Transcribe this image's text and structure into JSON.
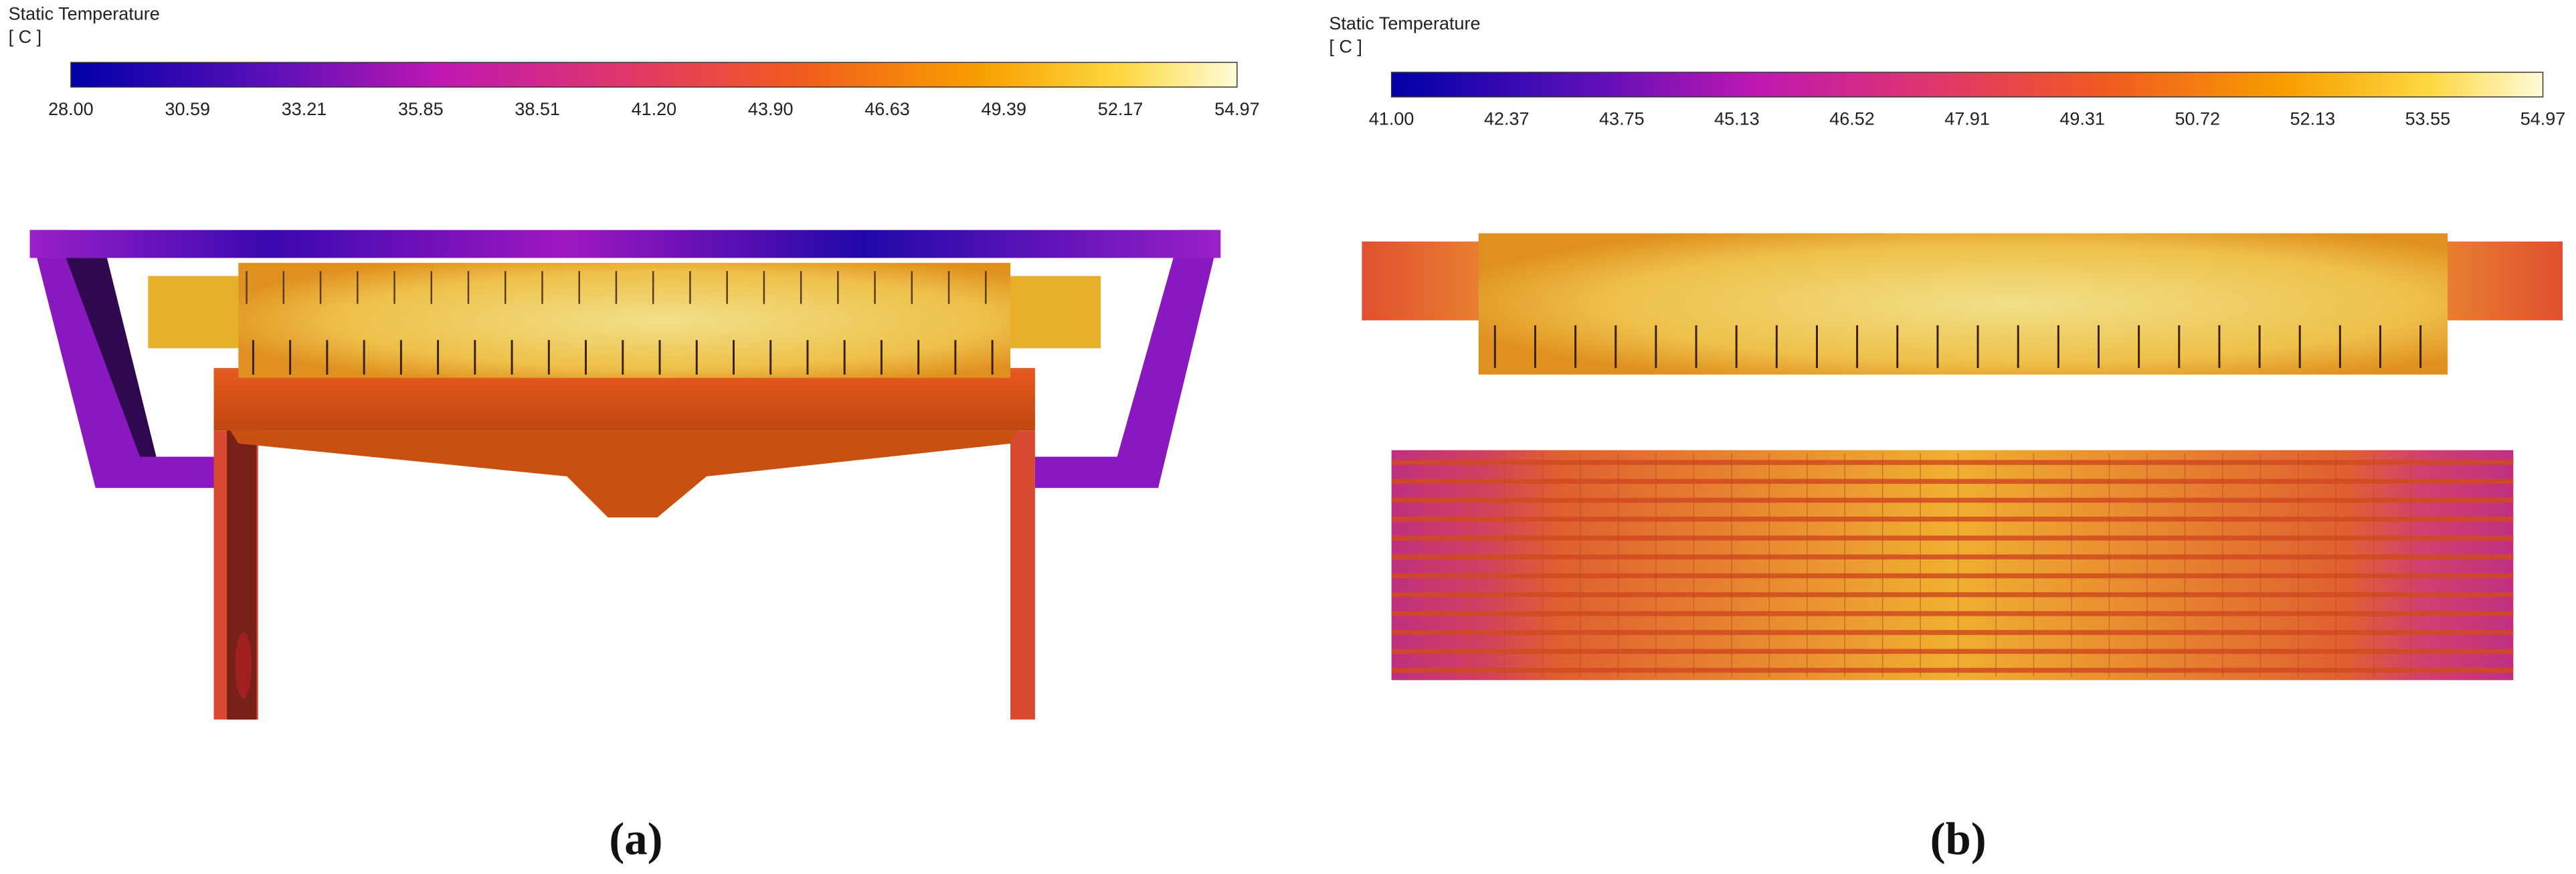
{
  "panels": [
    {
      "colorbar": {
        "title": "Static Temperature",
        "unit": "[ C ]",
        "ticks": [
          "28.00",
          "30.59",
          "33.21",
          "35.85",
          "38.51",
          "41.20",
          "43.90",
          "46.63",
          "49.39",
          "52.17",
          "54.97"
        ]
      },
      "caption": "(a)"
    },
    {
      "colorbar": {
        "title": "Static Temperature",
        "unit": "[ C ]",
        "ticks": [
          "41.00",
          "42.37",
          "43.75",
          "45.13",
          "46.52",
          "47.91",
          "49.31",
          "50.72",
          "52.13",
          "53.55",
          "54.97"
        ]
      },
      "caption": "(b)"
    }
  ]
}
